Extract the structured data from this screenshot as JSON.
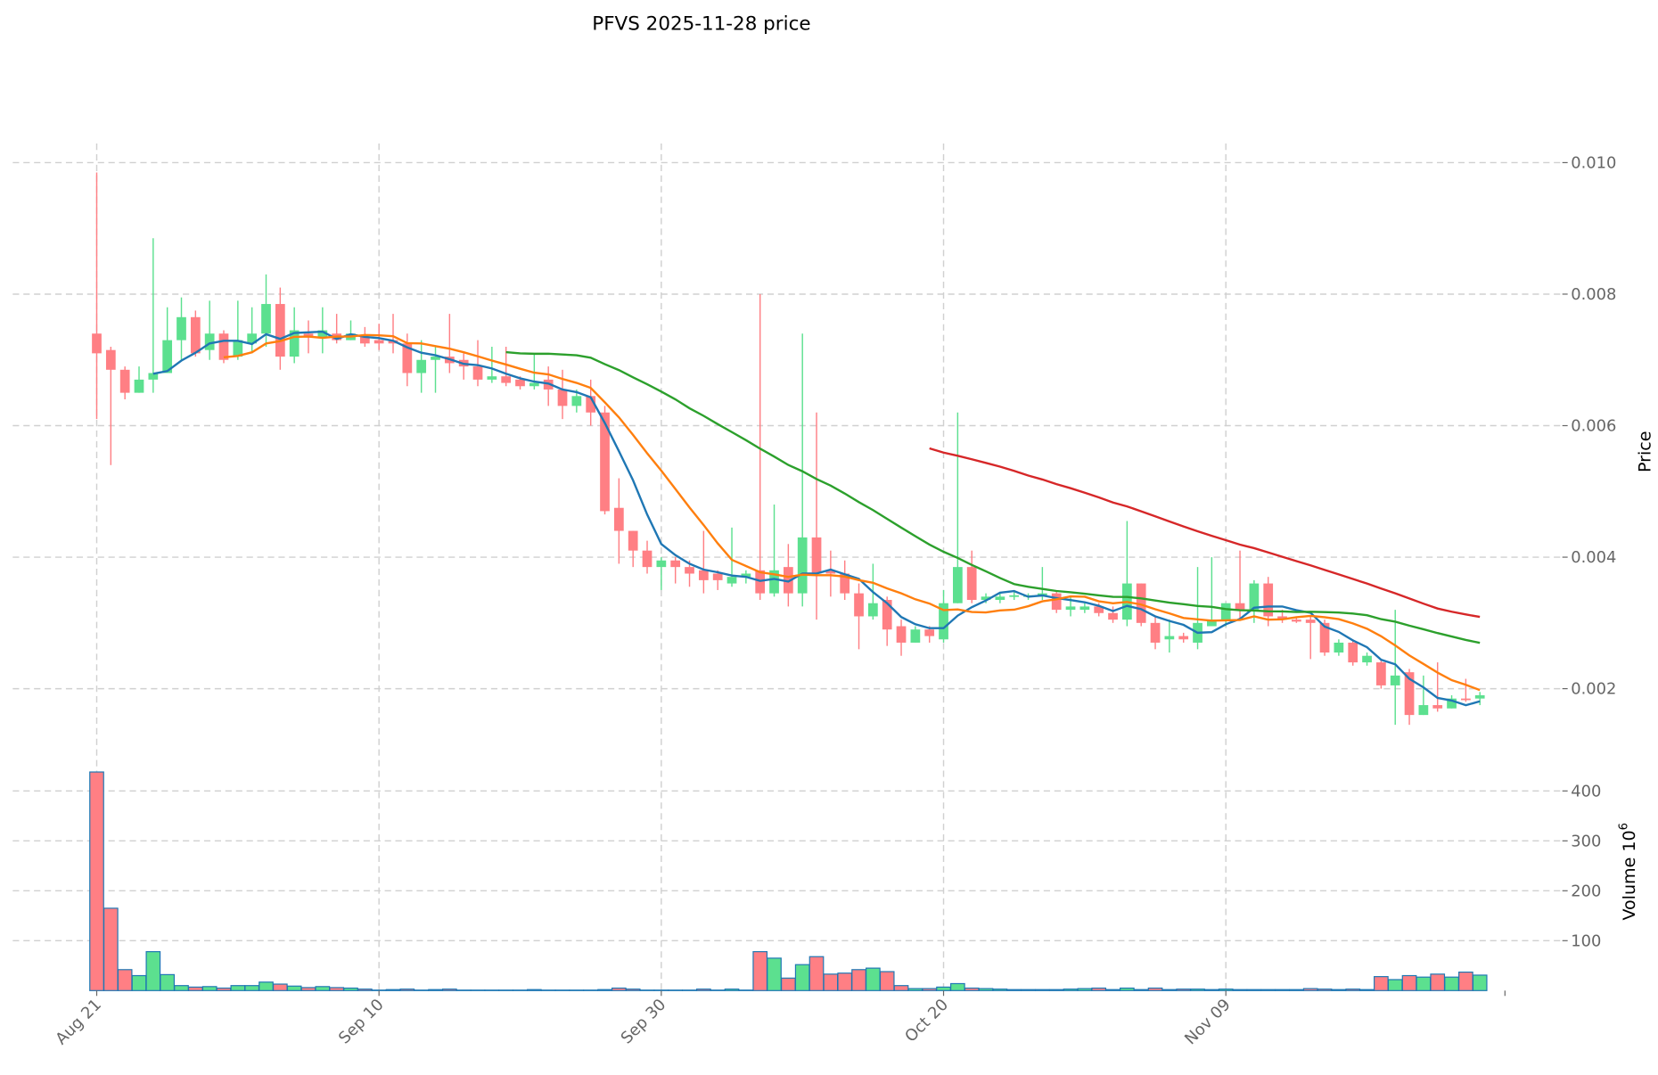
{
  "chart_data": {
    "type": "candlestick",
    "title": "PFVS  2025-11-28  price",
    "start_date": "2025-08-21",
    "ylabel": "Price",
    "volume_label": "Volume  10",
    "volume_exponent": "6",
    "price_ylim": [
      0.00132,
      0.01029
    ],
    "volume_ylim": [
      0,
      494
    ],
    "price_ticks": [
      "0.002",
      "0.004",
      "0.006",
      "0.008",
      "0.010"
    ],
    "price_tick_values": [
      0.002,
      0.004,
      0.006,
      0.008,
      0.01
    ],
    "volume_ticks": [
      "100",
      "200",
      "300",
      "400"
    ],
    "volume_tick_values": [
      100,
      200,
      300,
      400
    ],
    "x_ticks": [
      "Aug 21",
      "Sep 10",
      "Sep 30",
      "Oct 20",
      "Nov 09"
    ],
    "x_tick_index": [
      0,
      20,
      40,
      60,
      80
    ],
    "grid": true,
    "colors": {
      "up": "#5ce08f",
      "down": "#ff7f84",
      "volume_edge": "#1f77b4"
    },
    "moving_averages": [
      {
        "period": 5,
        "color": "#1f77b4"
      },
      {
        "period": 10,
        "color": "#ff7f0e"
      },
      {
        "period": 30,
        "color": "#2ca02c"
      },
      {
        "period": 60,
        "color": "#d62728"
      }
    ],
    "ohlc": [
      [
        0.0074,
        0.00985,
        0.0061,
        0.0071
      ],
      [
        0.00715,
        0.0072,
        0.0054,
        0.00685
      ],
      [
        0.00685,
        0.0069,
        0.0064,
        0.0065
      ],
      [
        0.0065,
        0.0069,
        0.0065,
        0.0067
      ],
      [
        0.0067,
        0.00885,
        0.0065,
        0.0068
      ],
      [
        0.0068,
        0.0078,
        0.0068,
        0.0073
      ],
      [
        0.0073,
        0.00795,
        0.007,
        0.00765
      ],
      [
        0.00765,
        0.00775,
        0.00705,
        0.0071
      ],
      [
        0.00715,
        0.0079,
        0.007,
        0.0074
      ],
      [
        0.0074,
        0.00745,
        0.00695,
        0.007
      ],
      [
        0.00705,
        0.0079,
        0.007,
        0.0073
      ],
      [
        0.00725,
        0.0078,
        0.0071,
        0.0074
      ],
      [
        0.0074,
        0.0083,
        0.0072,
        0.00785
      ],
      [
        0.00785,
        0.0081,
        0.00685,
        0.00705
      ],
      [
        0.00705,
        0.0078,
        0.00695,
        0.00745
      ],
      [
        0.0074,
        0.0076,
        0.0071,
        0.00735
      ],
      [
        0.00735,
        0.0078,
        0.0071,
        0.00745
      ],
      [
        0.0074,
        0.0077,
        0.00725,
        0.0073
      ],
      [
        0.0073,
        0.0076,
        0.0073,
        0.0074
      ],
      [
        0.00735,
        0.0075,
        0.0072,
        0.00725
      ],
      [
        0.0073,
        0.00755,
        0.00715,
        0.00725
      ],
      [
        0.0073,
        0.0077,
        0.0071,
        0.00725
      ],
      [
        0.00725,
        0.0074,
        0.0066,
        0.0068
      ],
      [
        0.0068,
        0.0073,
        0.0065,
        0.007
      ],
      [
        0.007,
        0.0072,
        0.0065,
        0.00705
      ],
      [
        0.00705,
        0.0077,
        0.0068,
        0.00695
      ],
      [
        0.007,
        0.0071,
        0.0067,
        0.0069
      ],
      [
        0.0069,
        0.0073,
        0.0066,
        0.0067
      ],
      [
        0.0067,
        0.0072,
        0.00665,
        0.00675
      ],
      [
        0.00675,
        0.0072,
        0.0066,
        0.00665
      ],
      [
        0.0067,
        0.00675,
        0.00655,
        0.0066
      ],
      [
        0.0066,
        0.0071,
        0.00655,
        0.00665
      ],
      [
        0.0067,
        0.0069,
        0.0063,
        0.00655
      ],
      [
        0.00655,
        0.00685,
        0.0061,
        0.0063
      ],
      [
        0.0063,
        0.00655,
        0.0062,
        0.00645
      ],
      [
        0.00645,
        0.0067,
        0.006,
        0.0062
      ],
      [
        0.0062,
        0.0063,
        0.00465,
        0.0047
      ],
      [
        0.00475,
        0.0052,
        0.0039,
        0.0044
      ],
      [
        0.0044,
        0.0044,
        0.00385,
        0.0041
      ],
      [
        0.0041,
        0.00425,
        0.00375,
        0.00385
      ],
      [
        0.00385,
        0.004,
        0.0035,
        0.00395
      ],
      [
        0.00395,
        0.004,
        0.0036,
        0.00385
      ],
      [
        0.00385,
        0.00395,
        0.00355,
        0.00375
      ],
      [
        0.0038,
        0.0044,
        0.00345,
        0.00365
      ],
      [
        0.00375,
        0.0038,
        0.0035,
        0.00365
      ],
      [
        0.0036,
        0.00445,
        0.00355,
        0.0037
      ],
      [
        0.0037,
        0.0038,
        0.0036,
        0.00375
      ],
      [
        0.0038,
        0.008,
        0.00335,
        0.00345
      ],
      [
        0.00345,
        0.0048,
        0.0034,
        0.0038
      ],
      [
        0.00385,
        0.0042,
        0.00325,
        0.00345
      ],
      [
        0.00345,
        0.0074,
        0.00325,
        0.0043
      ],
      [
        0.0043,
        0.0062,
        0.00305,
        0.00375
      ],
      [
        0.0038,
        0.0041,
        0.0034,
        0.00375
      ],
      [
        0.00375,
        0.00395,
        0.00335,
        0.00345
      ],
      [
        0.00345,
        0.0036,
        0.0026,
        0.0031
      ],
      [
        0.0031,
        0.0039,
        0.00305,
        0.0033
      ],
      [
        0.00335,
        0.0034,
        0.00265,
        0.0029
      ],
      [
        0.00295,
        0.00305,
        0.0025,
        0.0027
      ],
      [
        0.0027,
        0.00295,
        0.0027,
        0.0029
      ],
      [
        0.0029,
        0.00295,
        0.0027,
        0.0028
      ],
      [
        0.00275,
        0.0035,
        0.0027,
        0.0033
      ],
      [
        0.0033,
        0.0062,
        0.0033,
        0.00385
      ],
      [
        0.00385,
        0.0041,
        0.0033,
        0.00335
      ],
      [
        0.00335,
        0.00345,
        0.0033,
        0.0034
      ],
      [
        0.00335,
        0.00345,
        0.0033,
        0.0034
      ],
      [
        0.0034,
        0.0035,
        0.00335,
        0.00342
      ],
      [
        0.0034,
        0.00345,
        0.00335,
        0.00342
      ],
      [
        0.0034,
        0.00385,
        0.00335,
        0.00345
      ],
      [
        0.00345,
        0.0035,
        0.00315,
        0.0032
      ],
      [
        0.0032,
        0.0034,
        0.0031,
        0.00325
      ],
      [
        0.0032,
        0.0033,
        0.00315,
        0.00325
      ],
      [
        0.00325,
        0.0033,
        0.0031,
        0.00315
      ],
      [
        0.00315,
        0.00325,
        0.003,
        0.00305
      ],
      [
        0.00305,
        0.00455,
        0.00295,
        0.0036
      ],
      [
        0.0036,
        0.0036,
        0.00295,
        0.003
      ],
      [
        0.003,
        0.0031,
        0.0026,
        0.0027
      ],
      [
        0.00275,
        0.00305,
        0.00255,
        0.0028
      ],
      [
        0.0028,
        0.00285,
        0.0027,
        0.00275
      ],
      [
        0.0027,
        0.00385,
        0.0026,
        0.003
      ],
      [
        0.00295,
        0.004,
        0.00295,
        0.00305
      ],
      [
        0.00305,
        0.0033,
        0.00295,
        0.0033
      ],
      [
        0.0033,
        0.0041,
        0.00305,
        0.0032
      ],
      [
        0.0032,
        0.00365,
        0.003,
        0.0036
      ],
      [
        0.0036,
        0.0037,
        0.00295,
        0.0031
      ],
      [
        0.0031,
        0.0032,
        0.003,
        0.00305
      ],
      [
        0.00305,
        0.0031,
        0.003,
        0.00302
      ],
      [
        0.00305,
        0.0031,
        0.00245,
        0.003
      ],
      [
        0.003,
        0.00305,
        0.0025,
        0.00255
      ],
      [
        0.00255,
        0.00275,
        0.0025,
        0.0027
      ],
      [
        0.0027,
        0.00275,
        0.00235,
        0.0024
      ],
      [
        0.0024,
        0.00255,
        0.00235,
        0.0025
      ],
      [
        0.0024,
        0.00245,
        0.002,
        0.00205
      ],
      [
        0.00205,
        0.0032,
        0.00145,
        0.0022
      ],
      [
        0.00225,
        0.0023,
        0.00145,
        0.0016
      ],
      [
        0.0016,
        0.0022,
        0.0016,
        0.00175
      ],
      [
        0.00175,
        0.0024,
        0.00165,
        0.0017
      ],
      [
        0.0017,
        0.0019,
        0.0017,
        0.00185
      ],
      [
        0.00185,
        0.00215,
        0.0018,
        0.00184
      ],
      [
        0.00185,
        0.00195,
        0.00175,
        0.0019
      ]
    ],
    "volume": [
      438,
      165,
      42,
      30,
      78,
      32,
      10,
      7,
      8,
      5,
      10,
      10,
      17,
      13,
      9,
      6,
      8,
      6,
      5,
      3,
      1,
      2,
      3,
      1,
      2,
      3,
      1,
      1,
      1,
      1,
      1,
      2,
      1,
      1,
      1,
      1,
      2,
      5,
      3,
      1,
      1,
      1,
      1,
      3,
      1,
      3,
      1,
      78,
      65,
      25,
      52,
      68,
      33,
      35,
      42,
      45,
      38,
      10,
      4,
      4,
      7,
      14,
      5,
      4,
      3,
      2,
      2,
      2,
      2,
      3,
      4,
      5,
      2,
      5,
      2,
      5,
      2,
      3,
      3,
      2,
      3,
      2,
      2,
      2,
      2,
      2,
      4,
      3,
      2,
      3,
      2,
      28,
      22,
      30,
      27,
      33,
      27,
      37,
      31
    ]
  }
}
